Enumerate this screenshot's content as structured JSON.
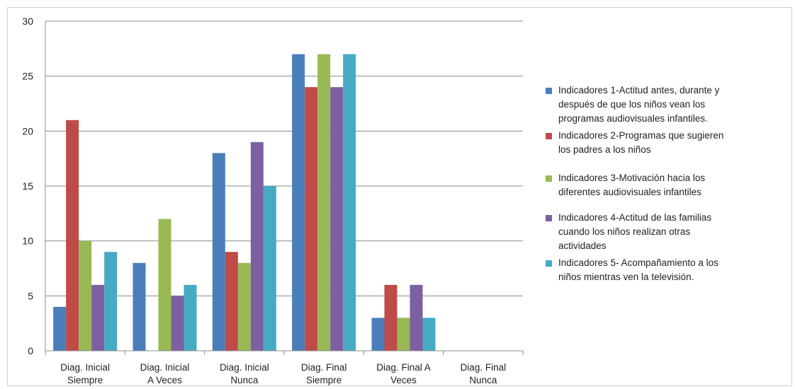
{
  "chart_data": {
    "type": "bar",
    "categories": [
      [
        "Diag. Inicial",
        "Siempre"
      ],
      [
        "Diag. Inicial",
        "A Veces"
      ],
      [
        "Diag. Inicial",
        "Nunca"
      ],
      [
        "Diag. Final",
        "Siempre"
      ],
      [
        "Diag. Final A",
        "Veces"
      ],
      [
        "Diag. Final",
        "Nunca"
      ]
    ],
    "series": [
      {
        "name": "Indicadores 1-Actitud antes, durante y después de que los niños vean los programas audiovisuales infantiles.",
        "name_lines": [
          "Indicadores 1-Actitud antes, durante y",
          "después de que los niños vean los",
          "programas audiovisuales infantiles."
        ],
        "color": "#4a7ebb",
        "values": [
          4,
          8,
          18,
          27,
          3,
          0
        ]
      },
      {
        "name": "Indicadores 2-Programas que sugieren los padres a los niños",
        "name_lines": [
          "Indicadores 2-Programas que sugieren",
          "los padres a los niños"
        ],
        "color": "#be4b48",
        "values": [
          21,
          0,
          9,
          24,
          6,
          0
        ]
      },
      {
        "name": "Indicadores 3-Motivación hacia los diferentes audiovisuales infantiles",
        "name_lines": [
          "Indicadores 3-Motivación hacia los",
          "diferentes audiovisuales infantiles"
        ],
        "color": "#98b954",
        "values": [
          10,
          12,
          8,
          27,
          3,
          0
        ]
      },
      {
        "name": "Indicadores 4-Actitud de las familias cuando los niños realizan otras actividades",
        "name_lines": [
          "Indicadores 4-Actitud de las familias",
          "cuando los niños realizan otras",
          "actividades"
        ],
        "color": "#7d60a0",
        "values": [
          6,
          5,
          19,
          24,
          6,
          0
        ]
      },
      {
        "name": "Indicadores 5- Acompañamiento a los niños mientras ven la televisión.",
        "name_lines": [
          "Indicadores 5- Acompañamiento a los",
          "niños mientras ven la televisión."
        ],
        "color": "#46aac5",
        "values": [
          9,
          6,
          15,
          27,
          3,
          0
        ]
      }
    ],
    "y_ticks": [
      "0",
      "5",
      "10",
      "15",
      "20",
      "25",
      "30"
    ],
    "ylim": [
      0,
      30
    ],
    "grid": true,
    "legend_position": "right",
    "title": "",
    "xlabel": "",
    "ylabel": ""
  }
}
